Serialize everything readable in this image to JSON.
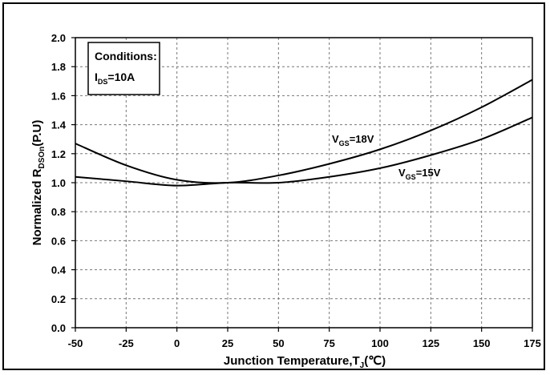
{
  "chart_data": {
    "type": "line",
    "title": "",
    "xlabel": {
      "main": "Junction Temperature,T",
      "sub": "J",
      "unit": "(℃)"
    },
    "ylabel": {
      "main": "Normalized R",
      "sub": "DSOn",
      "unit": "(P.U)"
    },
    "xlim": [
      -50,
      175
    ],
    "ylim": [
      0.0,
      2.0
    ],
    "x_ticks": [
      -50,
      -25,
      0,
      25,
      50,
      75,
      100,
      125,
      150,
      175
    ],
    "y_ticks": [
      0.0,
      0.2,
      0.4,
      0.6,
      0.8,
      1.0,
      1.2,
      1.4,
      1.6,
      1.8,
      2.0
    ],
    "grid": true,
    "conditions": {
      "heading": "Conditions:",
      "param_main": "I",
      "param_sub": "DS",
      "param_value": "=10A"
    },
    "series": [
      {
        "name": "VGS=18V",
        "label_main": "V",
        "label_sub": "GS",
        "label_value": "=18V",
        "x": [
          -50,
          -25,
          0,
          25,
          50,
          75,
          100,
          125,
          150,
          175
        ],
        "values": [
          1.27,
          1.12,
          1.02,
          1.0,
          1.05,
          1.13,
          1.23,
          1.36,
          1.52,
          1.71
        ]
      },
      {
        "name": "VGS=15V",
        "label_main": "V",
        "label_sub": "GS",
        "label_value": "=15V",
        "x": [
          -50,
          -25,
          0,
          25,
          50,
          75,
          100,
          125,
          150,
          175
        ],
        "values": [
          1.04,
          1.01,
          0.98,
          1.0,
          1.0,
          1.04,
          1.1,
          1.19,
          1.3,
          1.45
        ]
      }
    ]
  }
}
